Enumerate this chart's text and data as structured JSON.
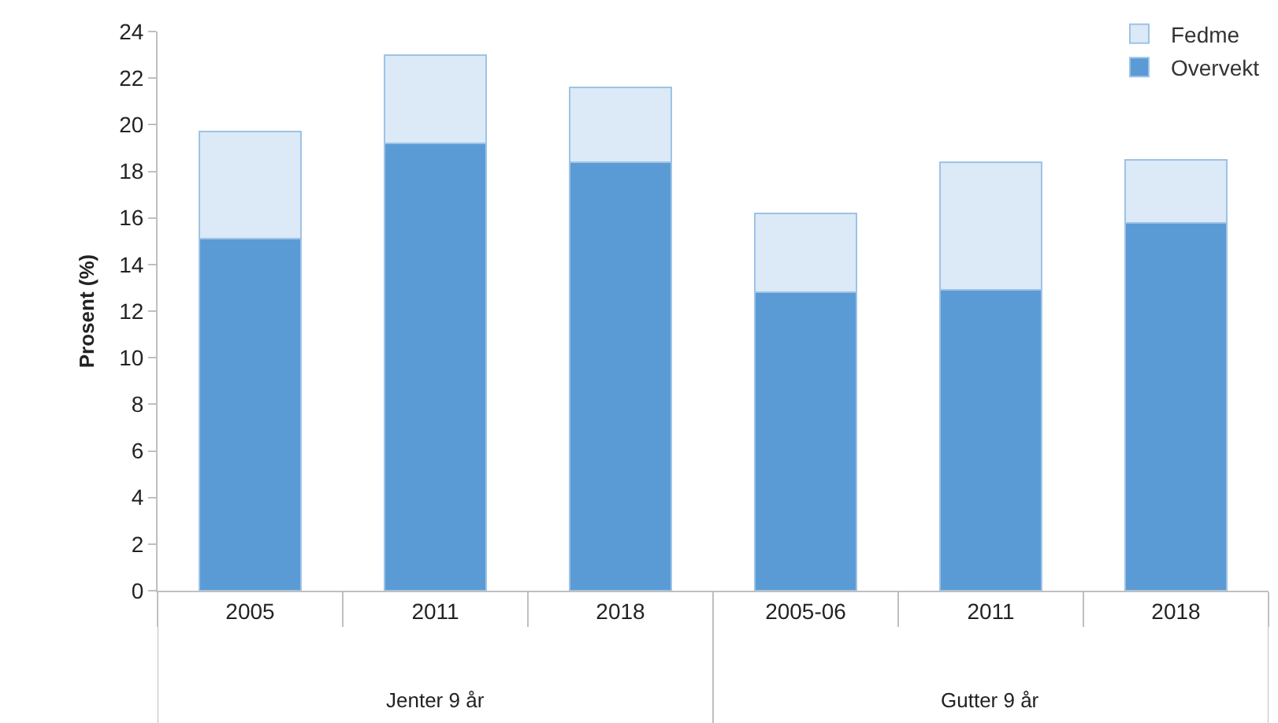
{
  "chart_data": {
    "type": "bar",
    "stacked": true,
    "ylabel": "Prosent (%)",
    "categories": [
      "2005",
      "2011",
      "2018",
      "2005-06",
      "2011",
      "2018"
    ],
    "series": [
      {
        "name": "Overvekt",
        "color": "#5b9bd5",
        "values": [
          15.1,
          19.2,
          18.4,
          12.8,
          12.9,
          15.8
        ]
      },
      {
        "name": "Fedme",
        "color": "#dce9f6",
        "values": [
          4.6,
          3.8,
          3.2,
          3.4,
          5.5,
          2.7
        ]
      }
    ],
    "ylim": [
      0,
      24
    ],
    "yticks": [
      0,
      2,
      4,
      6,
      8,
      10,
      12,
      14,
      16,
      18,
      20,
      22,
      24
    ],
    "grid": false,
    "legend": "top right",
    "annotations": [
      "Jenter 9 år",
      "Gutter 9 år"
    ]
  }
}
